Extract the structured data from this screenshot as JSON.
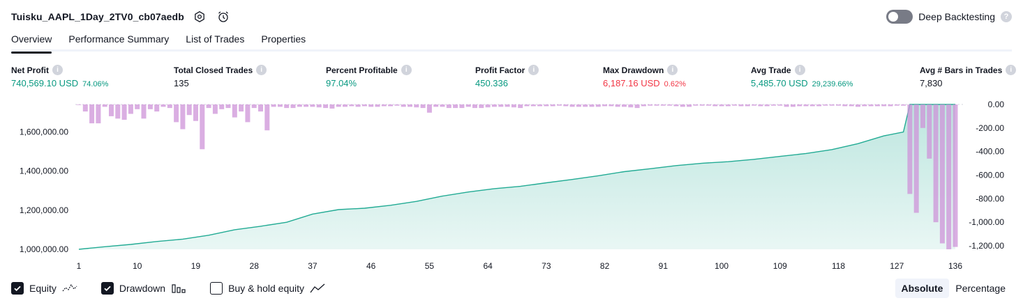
{
  "header": {
    "title": "Tuisku_AAPL_1Day_2TV0_cb07aedb",
    "deep_backtesting_label": "Deep Backtesting",
    "help_glyph": "?"
  },
  "tabs": [
    {
      "label": "Overview"
    },
    {
      "label": "Performance Summary"
    },
    {
      "label": "List of Trades"
    },
    {
      "label": "Properties"
    }
  ],
  "metrics": {
    "info_glyph": "i",
    "net_profit": {
      "label": "Net Profit",
      "value": "740,569.10 USD",
      "pct": "74.06%"
    },
    "total_closed_trades": {
      "label": "Total Closed Trades",
      "value": "135"
    },
    "percent_profitable": {
      "label": "Percent Profitable",
      "value": "97.04%"
    },
    "profit_factor": {
      "label": "Profit Factor",
      "value": "450.336"
    },
    "max_drawdown": {
      "label": "Max Drawdown",
      "value": "6,187.16 USD",
      "pct": "0.62%"
    },
    "avg_trade": {
      "label": "Avg Trade",
      "value": "5,485.70 USD",
      "pct": "29,239.66%"
    },
    "avg_bars": {
      "label": "Avg # Bars in Trades",
      "value": "7,830"
    }
  },
  "legend": {
    "equity": "Equity",
    "drawdown": "Drawdown",
    "buy_hold": "Buy & hold equity",
    "equity_checked": true,
    "drawdown_checked": true,
    "buy_hold_checked": false
  },
  "mode": {
    "absolute": "Absolute",
    "percentage": "Percentage",
    "selected": "Absolute"
  },
  "colors": {
    "equity_line": "#22ab94",
    "equity_fill": "#22ab94",
    "drawdown_bar": "#ce93d8",
    "text_green": "#089981",
    "text_red": "#f23645"
  },
  "chart_data": {
    "type": "area",
    "x_ticks": [
      "1",
      "10",
      "19",
      "28",
      "37",
      "46",
      "55",
      "64",
      "73",
      "82",
      "91",
      "100",
      "109",
      "118",
      "127",
      "136"
    ],
    "y_left_ticks": [
      "1,000,000.00",
      "1,200,000.00",
      "1,400,000.00",
      "1,600,000.00"
    ],
    "y_left_values": [
      1000000,
      1200000,
      1400000,
      1600000
    ],
    "y_right_ticks": [
      "0.00",
      "-200.00",
      "-400.00",
      "-600.00",
      "-800.00",
      "-1,000.00",
      "-1,200.00"
    ],
    "y_right_values": [
      0,
      -200,
      -400,
      -600,
      -800,
      -1000,
      -1200
    ],
    "x_range": [
      1,
      136
    ],
    "equity_range": [
      1000000,
      1740569
    ],
    "drawdown_range": [
      -1230,
      0
    ],
    "series": [
      {
        "name": "Equity",
        "trades": [
          1,
          5,
          9,
          13,
          17,
          21,
          25,
          29,
          33,
          37,
          41,
          45,
          49,
          53,
          57,
          61,
          65,
          69,
          73,
          77,
          81,
          85,
          89,
          93,
          97,
          101,
          105,
          109,
          113,
          117,
          121,
          125,
          128,
          129,
          133,
          136
        ],
        "values": [
          1000000,
          1013000,
          1025000,
          1040000,
          1052000,
          1072000,
          1100000,
          1118000,
          1138000,
          1180000,
          1203000,
          1210000,
          1225000,
          1245000,
          1272000,
          1293000,
          1310000,
          1322000,
          1340000,
          1357000,
          1376000,
          1397000,
          1412000,
          1428000,
          1440000,
          1448000,
          1460000,
          1475000,
          1490000,
          1510000,
          1540000,
          1580000,
          1600000,
          1740569,
          1740569,
          1740569
        ]
      },
      {
        "name": "Drawdown",
        "values": [
          -5,
          -60,
          -160,
          -160,
          -20,
          -100,
          -120,
          -130,
          -80,
          -40,
          -120,
          -40,
          -60,
          -20,
          -30,
          -150,
          -210,
          -90,
          -140,
          -380,
          -30,
          -80,
          -40,
          -30,
          -110,
          -60,
          -150,
          -30,
          -60,
          -220,
          -20,
          -20,
          -30,
          -30,
          -20,
          -20,
          -20,
          -25,
          -30,
          -35,
          -20,
          -20,
          -15,
          -20,
          -15,
          -20,
          -20,
          -15,
          -15,
          -10,
          -20,
          -20,
          -25,
          -30,
          -70,
          -20,
          -20,
          -30,
          -30,
          -30,
          -20,
          -30,
          -30,
          -25,
          -20,
          -20,
          -20,
          -25,
          -30,
          -15,
          -15,
          -15,
          -15,
          -15,
          -10,
          -15,
          -20,
          -20,
          -20,
          -20,
          -20,
          -15,
          -15,
          -20,
          -20,
          -25,
          -30,
          -15,
          -10,
          -10,
          -10,
          -10,
          -15,
          -20,
          -20,
          -10,
          -10,
          -10,
          -15,
          -15,
          -15,
          -10,
          -15,
          -15,
          -10,
          -15,
          -15,
          -10,
          -10,
          -20,
          -20,
          -15,
          -15,
          -15,
          -15,
          -10,
          -10,
          -10,
          -15,
          -15,
          -20,
          -15,
          -15,
          -15,
          -15,
          -15,
          -10,
          -10,
          -760,
          -920,
          -200,
          -460,
          -1000,
          -1180,
          -1230,
          -1210
        ]
      }
    ]
  }
}
